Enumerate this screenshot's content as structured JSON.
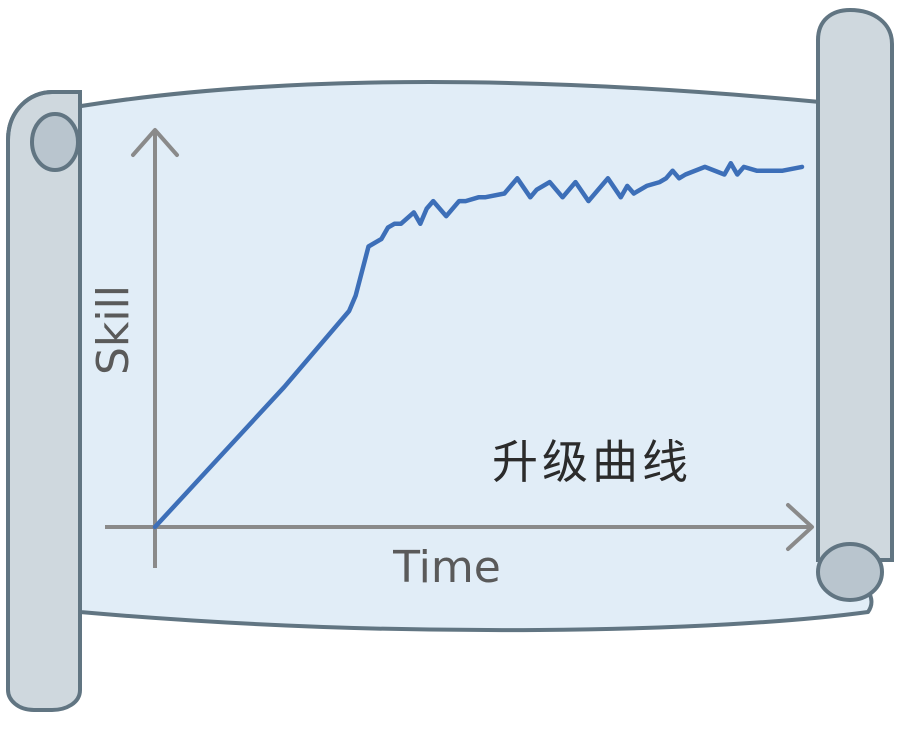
{
  "chart_data": {
    "type": "line",
    "title": "升级曲线",
    "xlabel": "Time",
    "ylabel": "Skill",
    "xlim": [
      0,
      100
    ],
    "ylim": [
      0,
      100
    ],
    "grid": false,
    "series": [
      {
        "x": [
          0,
          10,
          20,
          30,
          31,
          33,
          35,
          36,
          37,
          38,
          40,
          41,
          42,
          43,
          45,
          47,
          48,
          50,
          51,
          54,
          56,
          58,
          59,
          61,
          63,
          65,
          67,
          70,
          72,
          73,
          74,
          76,
          78,
          79,
          80,
          81,
          82,
          85,
          88,
          89,
          90,
          91,
          93,
          95,
          97,
          100
        ],
        "values": [
          0,
          18.5,
          37,
          57,
          61,
          74,
          76,
          79,
          80,
          80,
          83,
          80,
          84,
          86,
          82,
          86,
          86,
          87,
          87,
          88,
          92,
          87,
          89,
          91,
          87,
          91,
          86,
          92,
          87,
          90,
          88,
          90,
          91,
          92,
          94,
          92,
          93,
          95,
          93,
          96,
          93,
          95,
          94,
          94,
          94,
          95
        ]
      }
    ],
    "series_color": "#3d6fb8"
  },
  "colors": {
    "scroll_fill": "#e1edf7",
    "scroll_outline": "#617582",
    "roller_fill": "#cfd8de",
    "axis": "#8a8a8a"
  }
}
